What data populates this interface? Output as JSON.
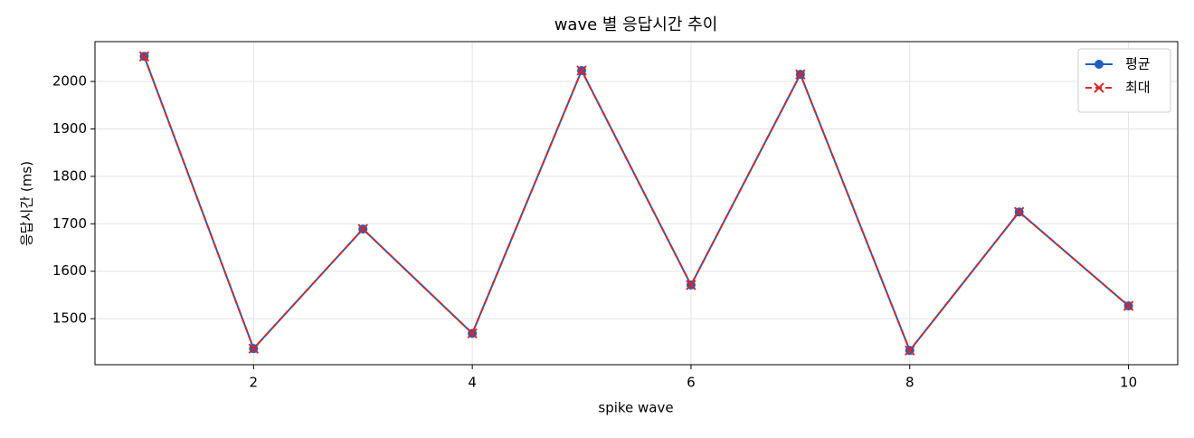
{
  "chart_data": {
    "type": "line",
    "title": "wave 별 응답시간 추이",
    "xlabel": "spike wave",
    "ylabel": "응답시간 (ms)",
    "x": [
      1,
      2,
      3,
      4,
      5,
      6,
      7,
      8,
      9,
      10
    ],
    "series": [
      {
        "name": "평균",
        "color": "#1f5fbf",
        "marker": "o",
        "linestyle": "solid",
        "values": [
          2053,
          1437,
          1689,
          1469,
          2023,
          1571,
          2015,
          1433,
          1725,
          1527
        ]
      },
      {
        "name": "최대",
        "color": "#d62728",
        "marker": "x",
        "linestyle": "dashed",
        "values": [
          2053,
          1437,
          1689,
          1469,
          2023,
          1571,
          2015,
          1433,
          1725,
          1527
        ]
      }
    ],
    "xlim": [
      0.55,
      10.45
    ],
    "xticks": [
      2,
      4,
      6,
      8,
      10
    ],
    "ylim": [
      1403,
      2084
    ],
    "yticks": [
      1500,
      1600,
      1700,
      1800,
      1900,
      2000
    ],
    "grid": true,
    "legend": "upper right"
  }
}
